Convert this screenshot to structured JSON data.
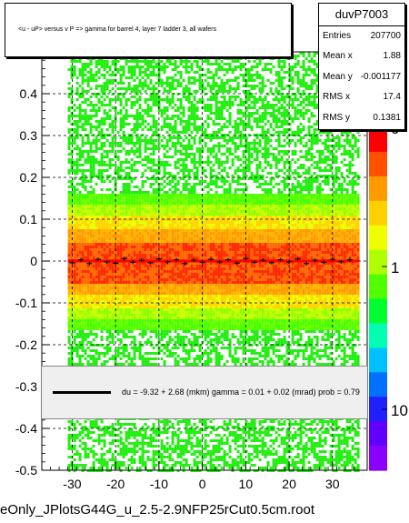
{
  "plot": {
    "title": "<u - uP>       versus   v P =>  gamma for barrel 4, layer 7 ladder 3, all wafers",
    "footer": "eOnly_JPlotsG44G_u_2.5-2.9NFP25rCut0.5cm.root"
  },
  "stats": {
    "name": "duvP7003",
    "rows": [
      {
        "label": "Entries",
        "value": "207700"
      },
      {
        "label": "Mean x",
        "value": "1.88"
      },
      {
        "label": "Mean y",
        "value": "-0.001177"
      },
      {
        "label": "RMS x",
        "value": "17.4"
      },
      {
        "label": "RMS y",
        "value": "0.1381"
      }
    ]
  },
  "fit": {
    "text": "du =    -9.32 +  2.68 (mkm) gamma =     0.01 +  0.02 (mrad) prob = 0.79"
  },
  "colors": {
    "frame": "#000000",
    "profile_marker": "#000000",
    "fit_line": "#ff0000",
    "palette_low": "#7f00ff",
    "palette_mid": "#00ff00",
    "palette_high": "#ff0000"
  },
  "chart_data": {
    "type": "heatmap",
    "title": "<u - uP>       versus   v P =>  gamma for barrel 4, layer 7 ladder 3, all wafers",
    "xlabel": "",
    "ylabel": "",
    "xlim": [
      -37,
      38
    ],
    "ylim": [
      -0.5,
      0.5
    ],
    "x_ticks": [
      -30,
      -20,
      -10,
      0,
      10,
      20,
      30
    ],
    "y_ticks": [
      -0.5,
      -0.4,
      -0.3,
      -0.2,
      -0.1,
      0,
      0.1,
      0.2,
      0.3,
      0.4
    ],
    "x_tick_labels": [
      "-30",
      "-20",
      "-10",
      "0",
      "10",
      "20",
      "30"
    ],
    "y_tick_labels": [
      "-0.5",
      "-0.4",
      "-0.3",
      "-0.2",
      "-0.1",
      "0",
      "0.1",
      "0.2",
      "0.3",
      "0.4"
    ],
    "z_scale": "log",
    "z_tick_labels": [
      "1",
      "10"
    ],
    "z_ticks": [
      1,
      10
    ],
    "occupied_x_range": [
      -31,
      36
    ],
    "grid": true,
    "fit_line": {
      "intercept_mkm": -9.32,
      "slope_mrad": 0.01
    },
    "profile": {
      "x": [
        -30,
        -28,
        -26,
        -24,
        -22,
        -20,
        -18,
        -16,
        -14,
        -12,
        -10,
        -8,
        -6,
        -4,
        -2,
        0,
        2,
        4,
        6,
        8,
        10,
        12,
        14,
        16,
        18,
        20,
        22,
        24,
        26,
        28,
        30,
        32,
        34
      ],
      "y": [
        -0.004,
        0.003,
        -0.006,
        0.004,
        -0.002,
        -0.005,
        0.006,
        -0.003,
        0.002,
        -0.004,
        0.005,
        -0.002,
        0.003,
        -0.006,
        0.002,
        -0.003,
        0.004,
        -0.002,
        0.003,
        -0.005,
        0.006,
        -0.003,
        0.002,
        -0.004,
        0.003,
        -0.002,
        0.005,
        -0.006,
        0.002,
        -0.003,
        0.004,
        -0.002,
        0.003
      ]
    },
    "legend_position": "top-right"
  }
}
